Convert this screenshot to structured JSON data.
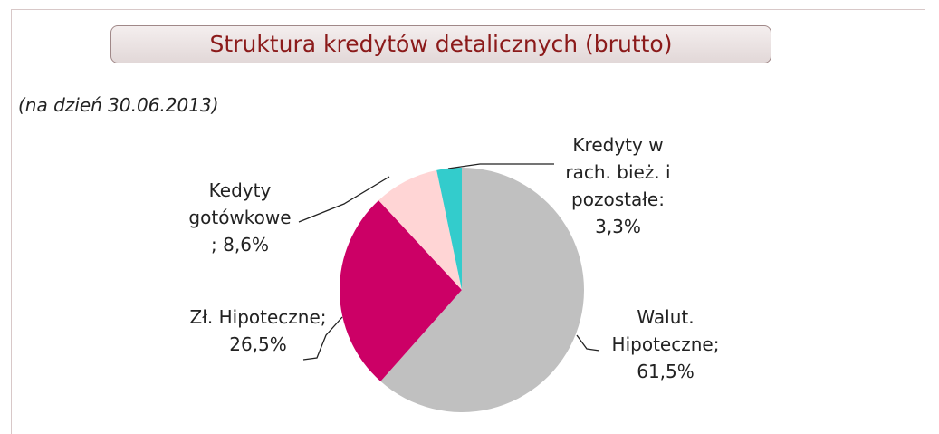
{
  "chart_data": {
    "type": "pie",
    "title": "Struktura kredytów detalicznych (brutto)",
    "subtitle": "(na dzień 30.06.2013)",
    "categories": [
      "Walut. Hipoteczne;",
      "Zł. Hipoteczne;",
      "Kedyty gotówkowe",
      "Kredyty w rach. bież. i pozostałe:"
    ],
    "values": [
      61.5,
      26.5,
      8.6,
      3.3
    ],
    "value_labels": [
      "61,5%",
      "26,5%",
      "; 8,6%",
      "3,3%"
    ],
    "colors": [
      "#c0c0c0",
      "#cc0066",
      "#ffd5d5",
      "#33cccc"
    ]
  }
}
